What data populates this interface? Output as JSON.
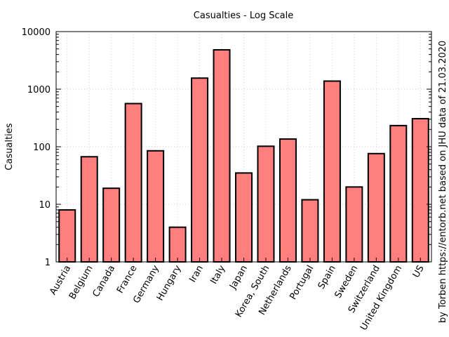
{
  "chart_data": {
    "type": "bar",
    "title": "Casualties - Log Scale",
    "ylabel": "Casualties",
    "xlabel": "",
    "yscale": "log",
    "ylim": [
      1,
      10000
    ],
    "yticks": [
      1,
      10,
      100,
      1000,
      10000
    ],
    "ytick_labels": [
      "1",
      "10",
      "100",
      "1000",
      "10000"
    ],
    "grid": true,
    "categories": [
      "Austria",
      "Belgium",
      "Canada",
      "France",
      "Germany",
      "Hungary",
      "Iran",
      "Italy",
      "Japan",
      "Korea, South",
      "Netherlands",
      "Portugal",
      "Spain",
      "Sweden",
      "Switzerland",
      "United Kingdom",
      "US"
    ],
    "values": [
      8,
      67,
      19,
      562,
      85,
      4,
      1556,
      4825,
      35,
      102,
      136,
      12,
      1381,
      20,
      76,
      233,
      307
    ],
    "bar_color": "#ff7f7f",
    "edge_color": "#000000",
    "credit": "by Torben https://entorb.net based on JHU data of 21.03.2020"
  }
}
